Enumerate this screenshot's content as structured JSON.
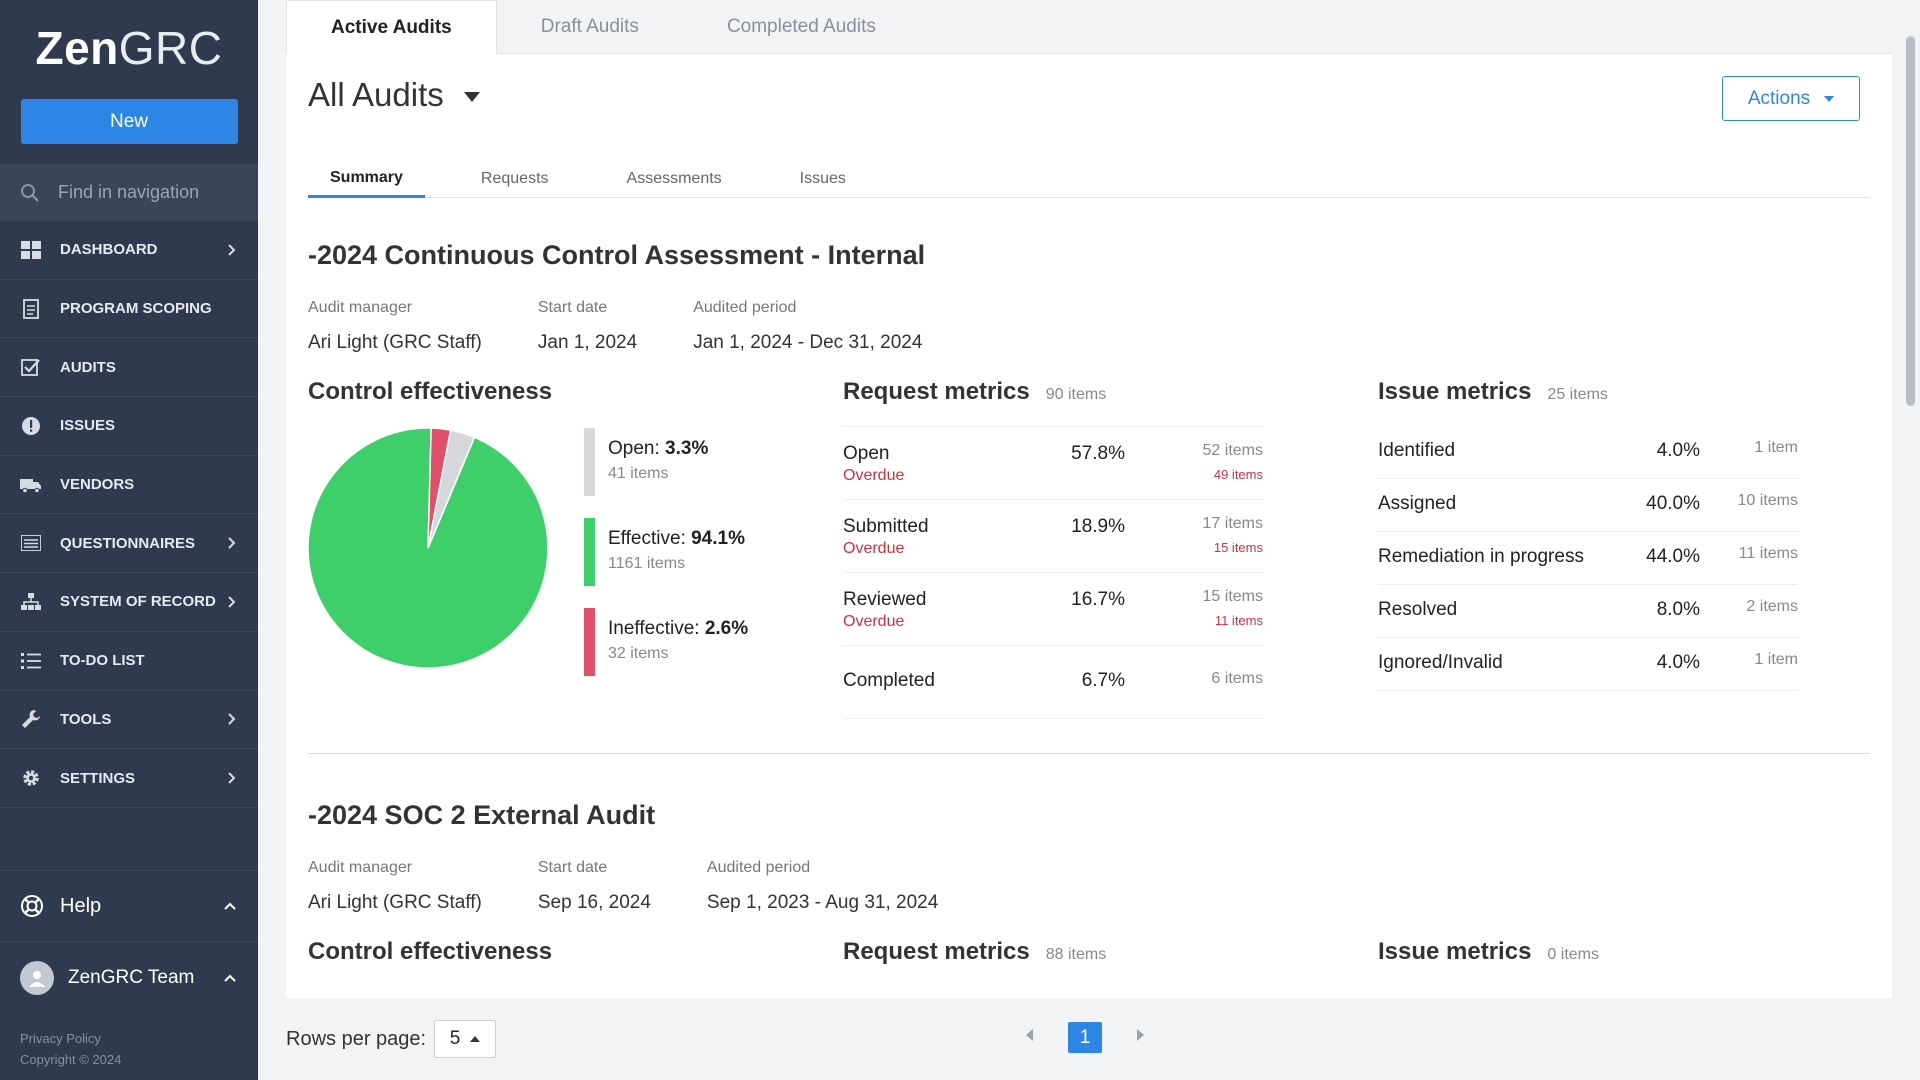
{
  "sidebar": {
    "logo_bold": "Zen",
    "logo_light": "GRC",
    "new_label": "New",
    "find_placeholder": "Find in navigation",
    "items": [
      {
        "label": "DASHBOARD",
        "icon": "dashboard-icon",
        "chevron": true
      },
      {
        "label": "PROGRAM SCOPING",
        "icon": "document-icon",
        "chevron": false
      },
      {
        "label": "AUDITS",
        "icon": "checkbox-icon",
        "chevron": false
      },
      {
        "label": "ISSUES",
        "icon": "alert-icon",
        "chevron": false
      },
      {
        "label": "VENDORS",
        "icon": "truck-icon",
        "chevron": false
      },
      {
        "label": "QUESTIONNAIRES",
        "icon": "list-icon",
        "chevron": true
      },
      {
        "label": "SYSTEM OF RECORD",
        "icon": "hierarchy-icon",
        "chevron": true
      },
      {
        "label": "TO-DO LIST",
        "icon": "todo-icon",
        "chevron": false
      },
      {
        "label": "TOOLS",
        "icon": "wrench-icon",
        "chevron": true
      },
      {
        "label": "SETTINGS",
        "icon": "gear-icon",
        "chevron": true
      }
    ],
    "help_label": "Help",
    "team_label": "ZenGRC Team",
    "privacy": "Privacy Policy",
    "copyright": "Copyright © 2024"
  },
  "tabs": [
    "Active Audits",
    "Draft Audits",
    "Completed Audits"
  ],
  "page_title": "All Audits",
  "actions_label": "Actions",
  "sub_tabs": [
    "Summary",
    "Requests",
    "Assessments",
    "Issues"
  ],
  "audits": [
    {
      "title": "-2024 Continuous Control Assessment - Internal",
      "meta": {
        "manager_label": "Audit manager",
        "manager": "Ari Light (GRC Staff)",
        "start_label": "Start date",
        "start": "Jan 1, 2024",
        "period_label": "Audited period",
        "period": "Jan 1, 2024 - Dec 31, 2024"
      },
      "control_effectiveness": {
        "title": "Control effectiveness",
        "legend": [
          {
            "label": "Open:",
            "pct": "3.3%",
            "items": "41 items",
            "value": 3.3,
            "color": "#d5d7db"
          },
          {
            "label": "Effective:",
            "pct": "94.1%",
            "items": "1161 items",
            "value": 94.1,
            "color": "#3ecf6b"
          },
          {
            "label": "Ineffective:",
            "pct": "2.6%",
            "items": "32 items",
            "value": 2.6,
            "color": "#e0506a"
          }
        ]
      },
      "request_metrics": {
        "title": "Request metrics",
        "count": "90 items",
        "rows": [
          {
            "name": "Open",
            "overdue": "Overdue",
            "pct": "57.8%",
            "items": "52 items",
            "overdue_items": "49 items"
          },
          {
            "name": "Submitted",
            "overdue": "Overdue",
            "pct": "18.9%",
            "items": "17 items",
            "overdue_items": "15 items"
          },
          {
            "name": "Reviewed",
            "overdue": "Overdue",
            "pct": "16.7%",
            "items": "15 items",
            "overdue_items": "11 items"
          },
          {
            "name": "Completed",
            "overdue": "",
            "pct": "6.7%",
            "items": "6 items",
            "overdue_items": ""
          }
        ]
      },
      "issue_metrics": {
        "title": "Issue metrics",
        "count": "25 items",
        "rows": [
          {
            "name": "Identified",
            "pct": "4.0%",
            "items": "1 item"
          },
          {
            "name": "Assigned",
            "pct": "40.0%",
            "items": "10 items"
          },
          {
            "name": "Remediation in progress",
            "pct": "44.0%",
            "items": "11 items"
          },
          {
            "name": "Resolved",
            "pct": "8.0%",
            "items": "2 items"
          },
          {
            "name": "Ignored/Invalid",
            "pct": "4.0%",
            "items": "1 item"
          }
        ]
      }
    },
    {
      "title": "-2024 SOC 2 External Audit",
      "meta": {
        "manager_label": "Audit manager",
        "manager": "Ari Light (GRC Staff)",
        "start_label": "Start date",
        "start": "Sep 16, 2024",
        "period_label": "Audited period",
        "period": "Sep 1, 2023 - Aug 31, 2024"
      },
      "control_effectiveness": {
        "title": "Control effectiveness"
      },
      "request_metrics": {
        "title": "Request metrics",
        "count": "88 items"
      },
      "issue_metrics": {
        "title": "Issue metrics",
        "count": "0 items"
      }
    }
  ],
  "pagination": {
    "rows_label": "Rows per page:",
    "rows_value": "5",
    "current_page": "1"
  }
}
